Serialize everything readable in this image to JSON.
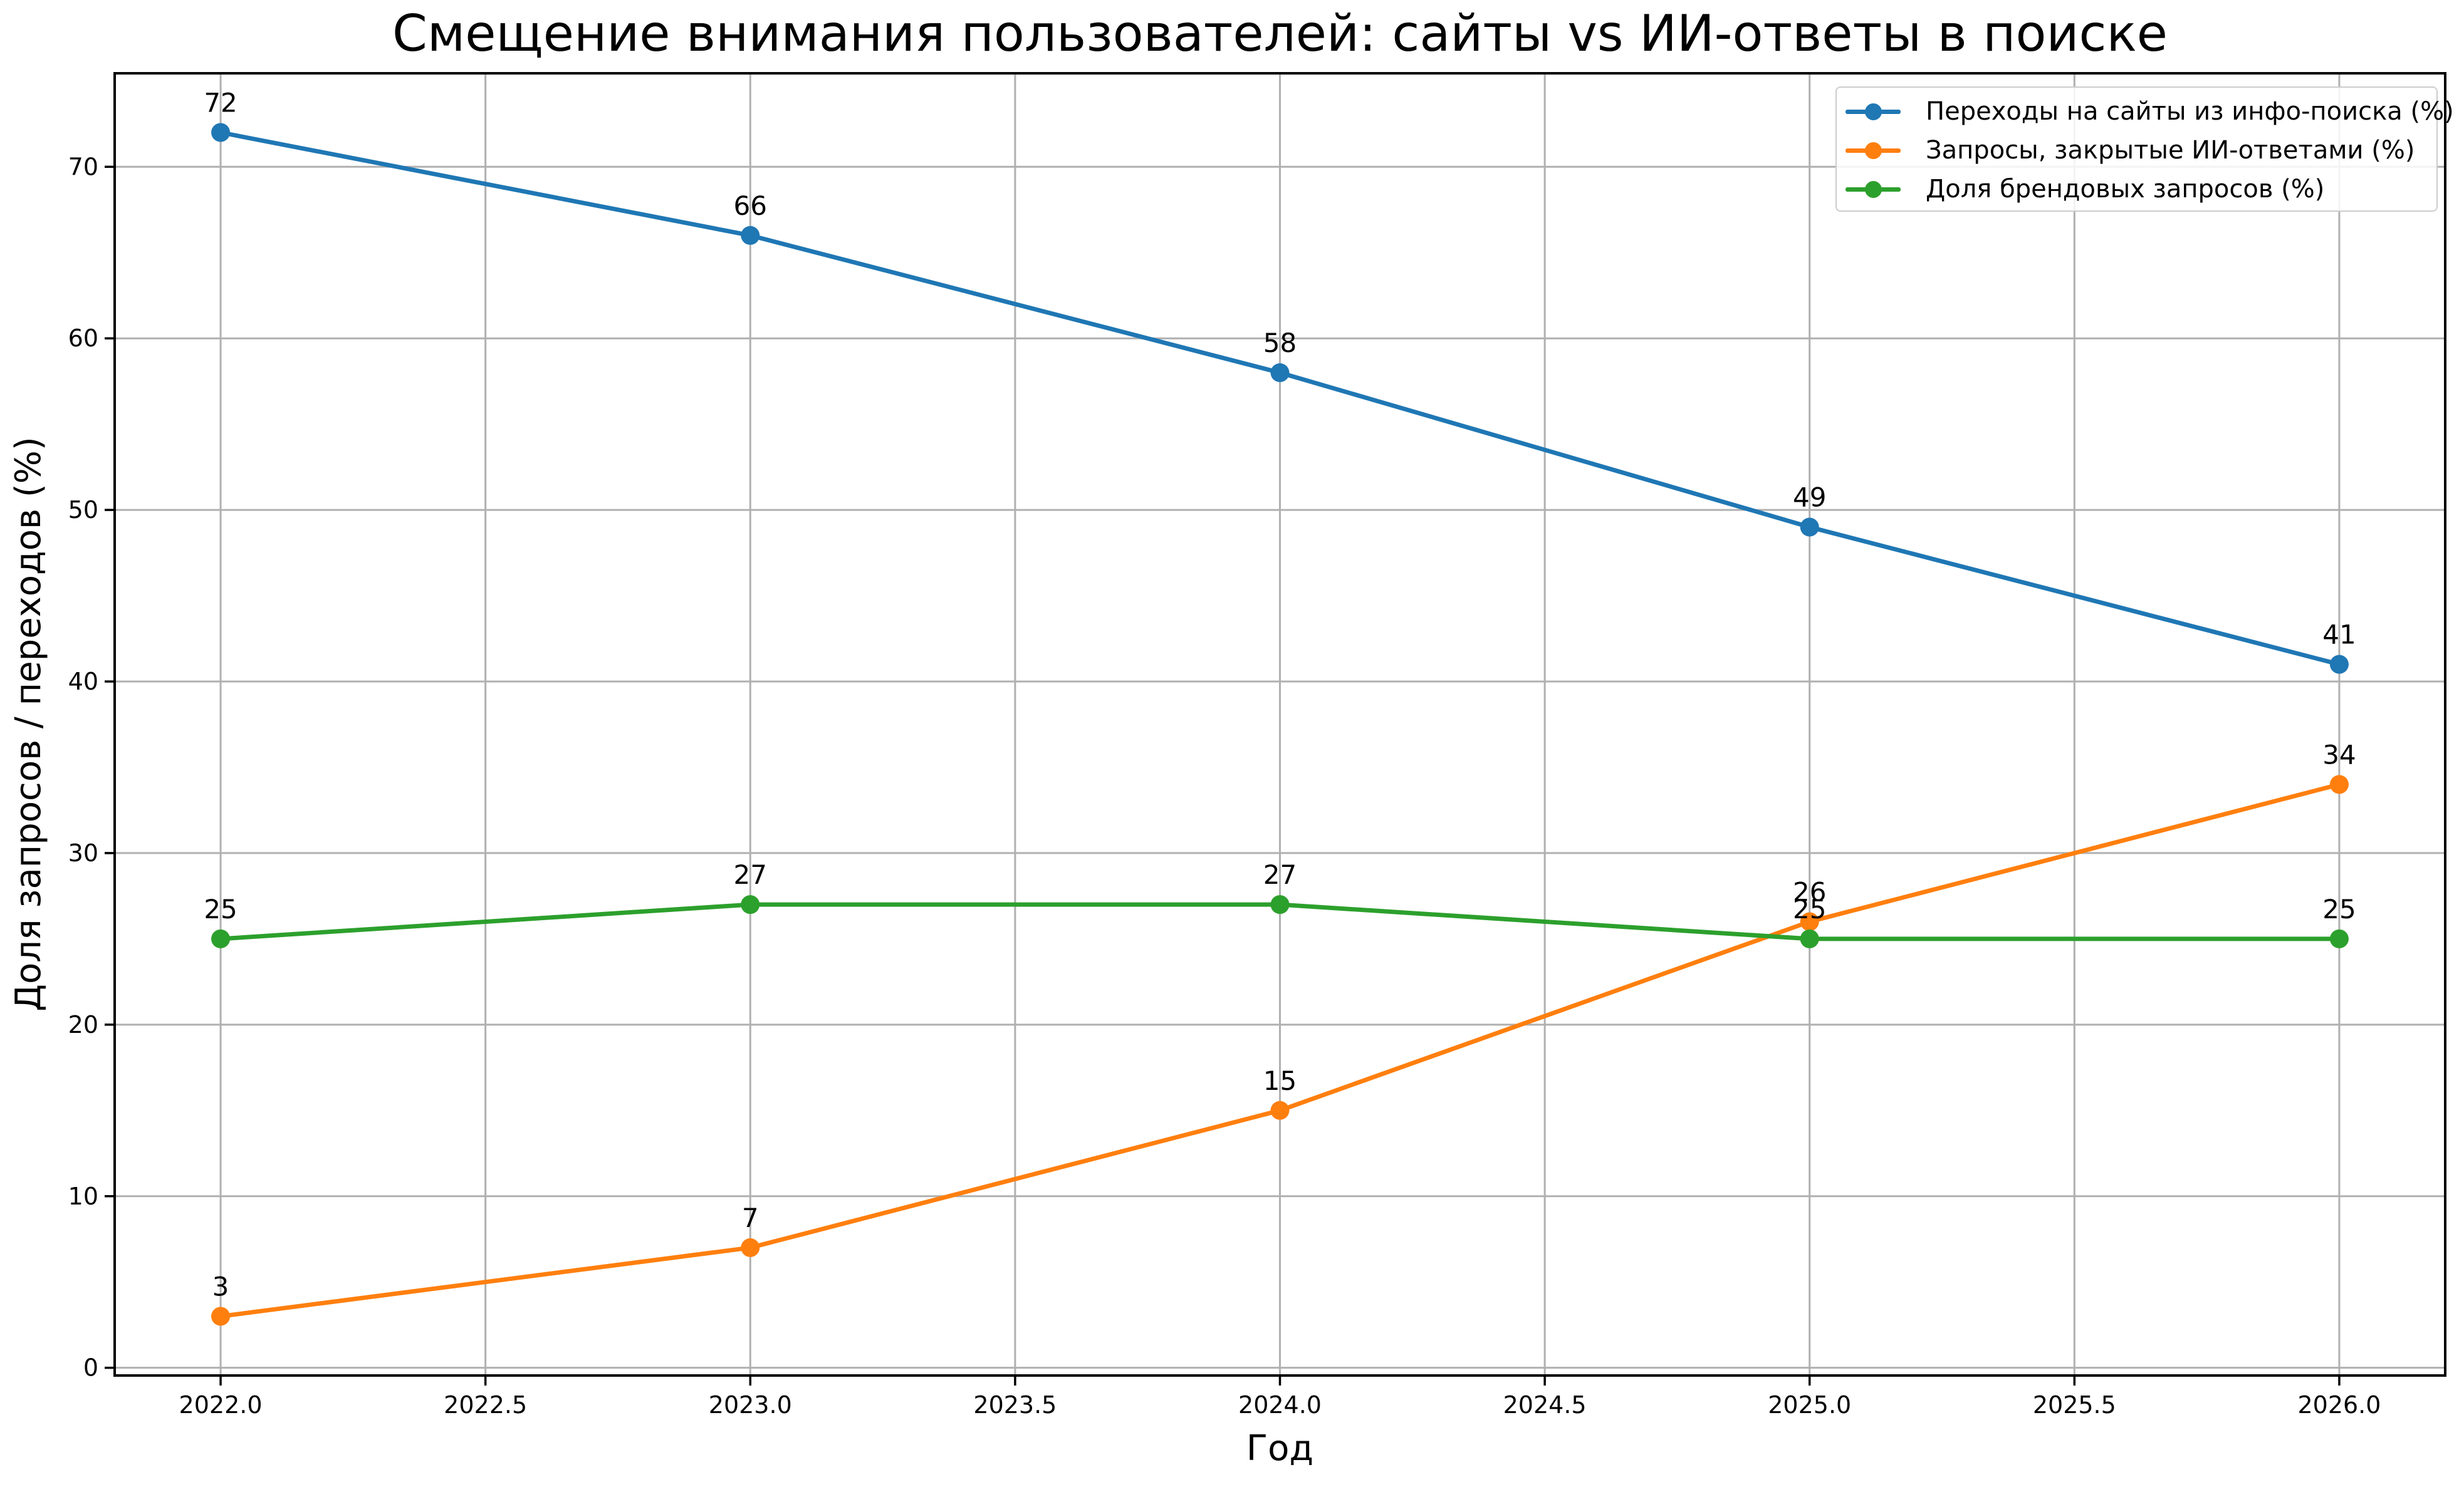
{
  "chart_data": {
    "type": "line",
    "title": "Смещение внимания пользователей: сайты vs ИИ-ответы в поиске",
    "xlabel": "Год",
    "ylabel": "Доля запросов / переходов (%)",
    "x": [
      2022,
      2023,
      2024,
      2025,
      2026
    ],
    "series": [
      {
        "name": "Переходы на сайты из инфо-поиска (%)",
        "color": "#1f77b4",
        "values": [
          72,
          66,
          58,
          49,
          41
        ]
      },
      {
        "name": "Запросы, закрытые ИИ-ответами (%)",
        "color": "#ff7f0e",
        "values": [
          3,
          7,
          15,
          26,
          34
        ]
      },
      {
        "name": "Доля брендовых запросов (%)",
        "color": "#2ca02c",
        "values": [
          25,
          27,
          27,
          25,
          25
        ]
      }
    ],
    "xlim": [
      2021.8,
      2026.2
    ],
    "ylim": [
      -0.45,
      75.45
    ],
    "x_ticks": [
      2022.0,
      2022.5,
      2023.0,
      2023.5,
      2024.0,
      2024.5,
      2025.0,
      2025.5,
      2026.0
    ],
    "x_tick_labels": [
      "2022.0",
      "2022.5",
      "2023.0",
      "2023.5",
      "2024.0",
      "2024.5",
      "2025.0",
      "2025.5",
      "2026.0"
    ],
    "y_ticks": [
      0,
      10,
      20,
      30,
      40,
      50,
      60,
      70
    ],
    "y_tick_labels": [
      "0",
      "10",
      "20",
      "30",
      "40",
      "50",
      "60",
      "70"
    ],
    "grid": true,
    "grid_color": "#b0b0b0",
    "spine_color": "#000000",
    "legend_position": "upper right",
    "point_labels": true
  }
}
